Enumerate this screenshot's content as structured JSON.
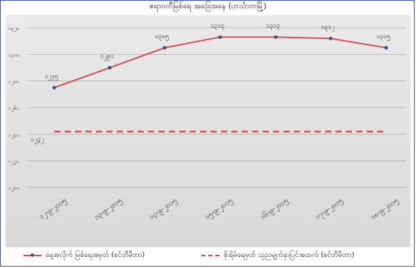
{
  "title": "ဧရာဝတီမြစ်ရေ အခြေအနေ (ဟင်္သာတမြို့)",
  "chart_data": {
    "type": "line",
    "categories": [
      "၁၂-၉-၂၀၁၅",
      "၁၃-၉-၂၀၁၅",
      "၁၄-၉-၂၀၁၅",
      "၁၅-၉-၂၀၁၅",
      "၁၆-၉-၂၀၁၅",
      "၁၇-၉-၂၀၁၅",
      "၁၈-၉-၂၀၁၅"
    ],
    "series": [
      {
        "name": "နေ့အလိုက် မြစ်ရေအမှတ် (စင်တီမီတာ)",
        "values": [
          1275,
          1290,
          1305,
          1313,
          1313,
          1312,
          1305
        ],
        "labels": [
          "၁၂၇၅",
          "၁၂၉၀",
          "၁၃၀၅",
          "၁၃၁၃",
          "၁၃၁၃",
          "၁၃၁၂",
          "၁၃၀၅"
        ]
      },
      {
        "name": "စိုးရိမ်ရေမှတ် သုညမျက်နှာပြင်အထက် (စင်တီမီတာ)",
        "values": [
          1242,
          1242,
          1242,
          1242,
          1242,
          1242,
          1242
        ],
        "labels": [
          "၁၂၄၂"
        ]
      }
    ],
    "yticks": [
      "၁၃၂၀",
      "၁၃၀၀",
      "၁၂၈၀",
      "၁၂၆၀",
      "၁၂၄၀",
      "၁၂၂၀",
      "၁၂၀၀"
    ],
    "ylim": [
      1200,
      1330
    ],
    "grid": true,
    "legend": "bottom"
  },
  "colors": {
    "line": "#d94c52",
    "marker": "#3b4fa0",
    "grid": "#b8b8b8",
    "frame": "#3b4fa0"
  }
}
